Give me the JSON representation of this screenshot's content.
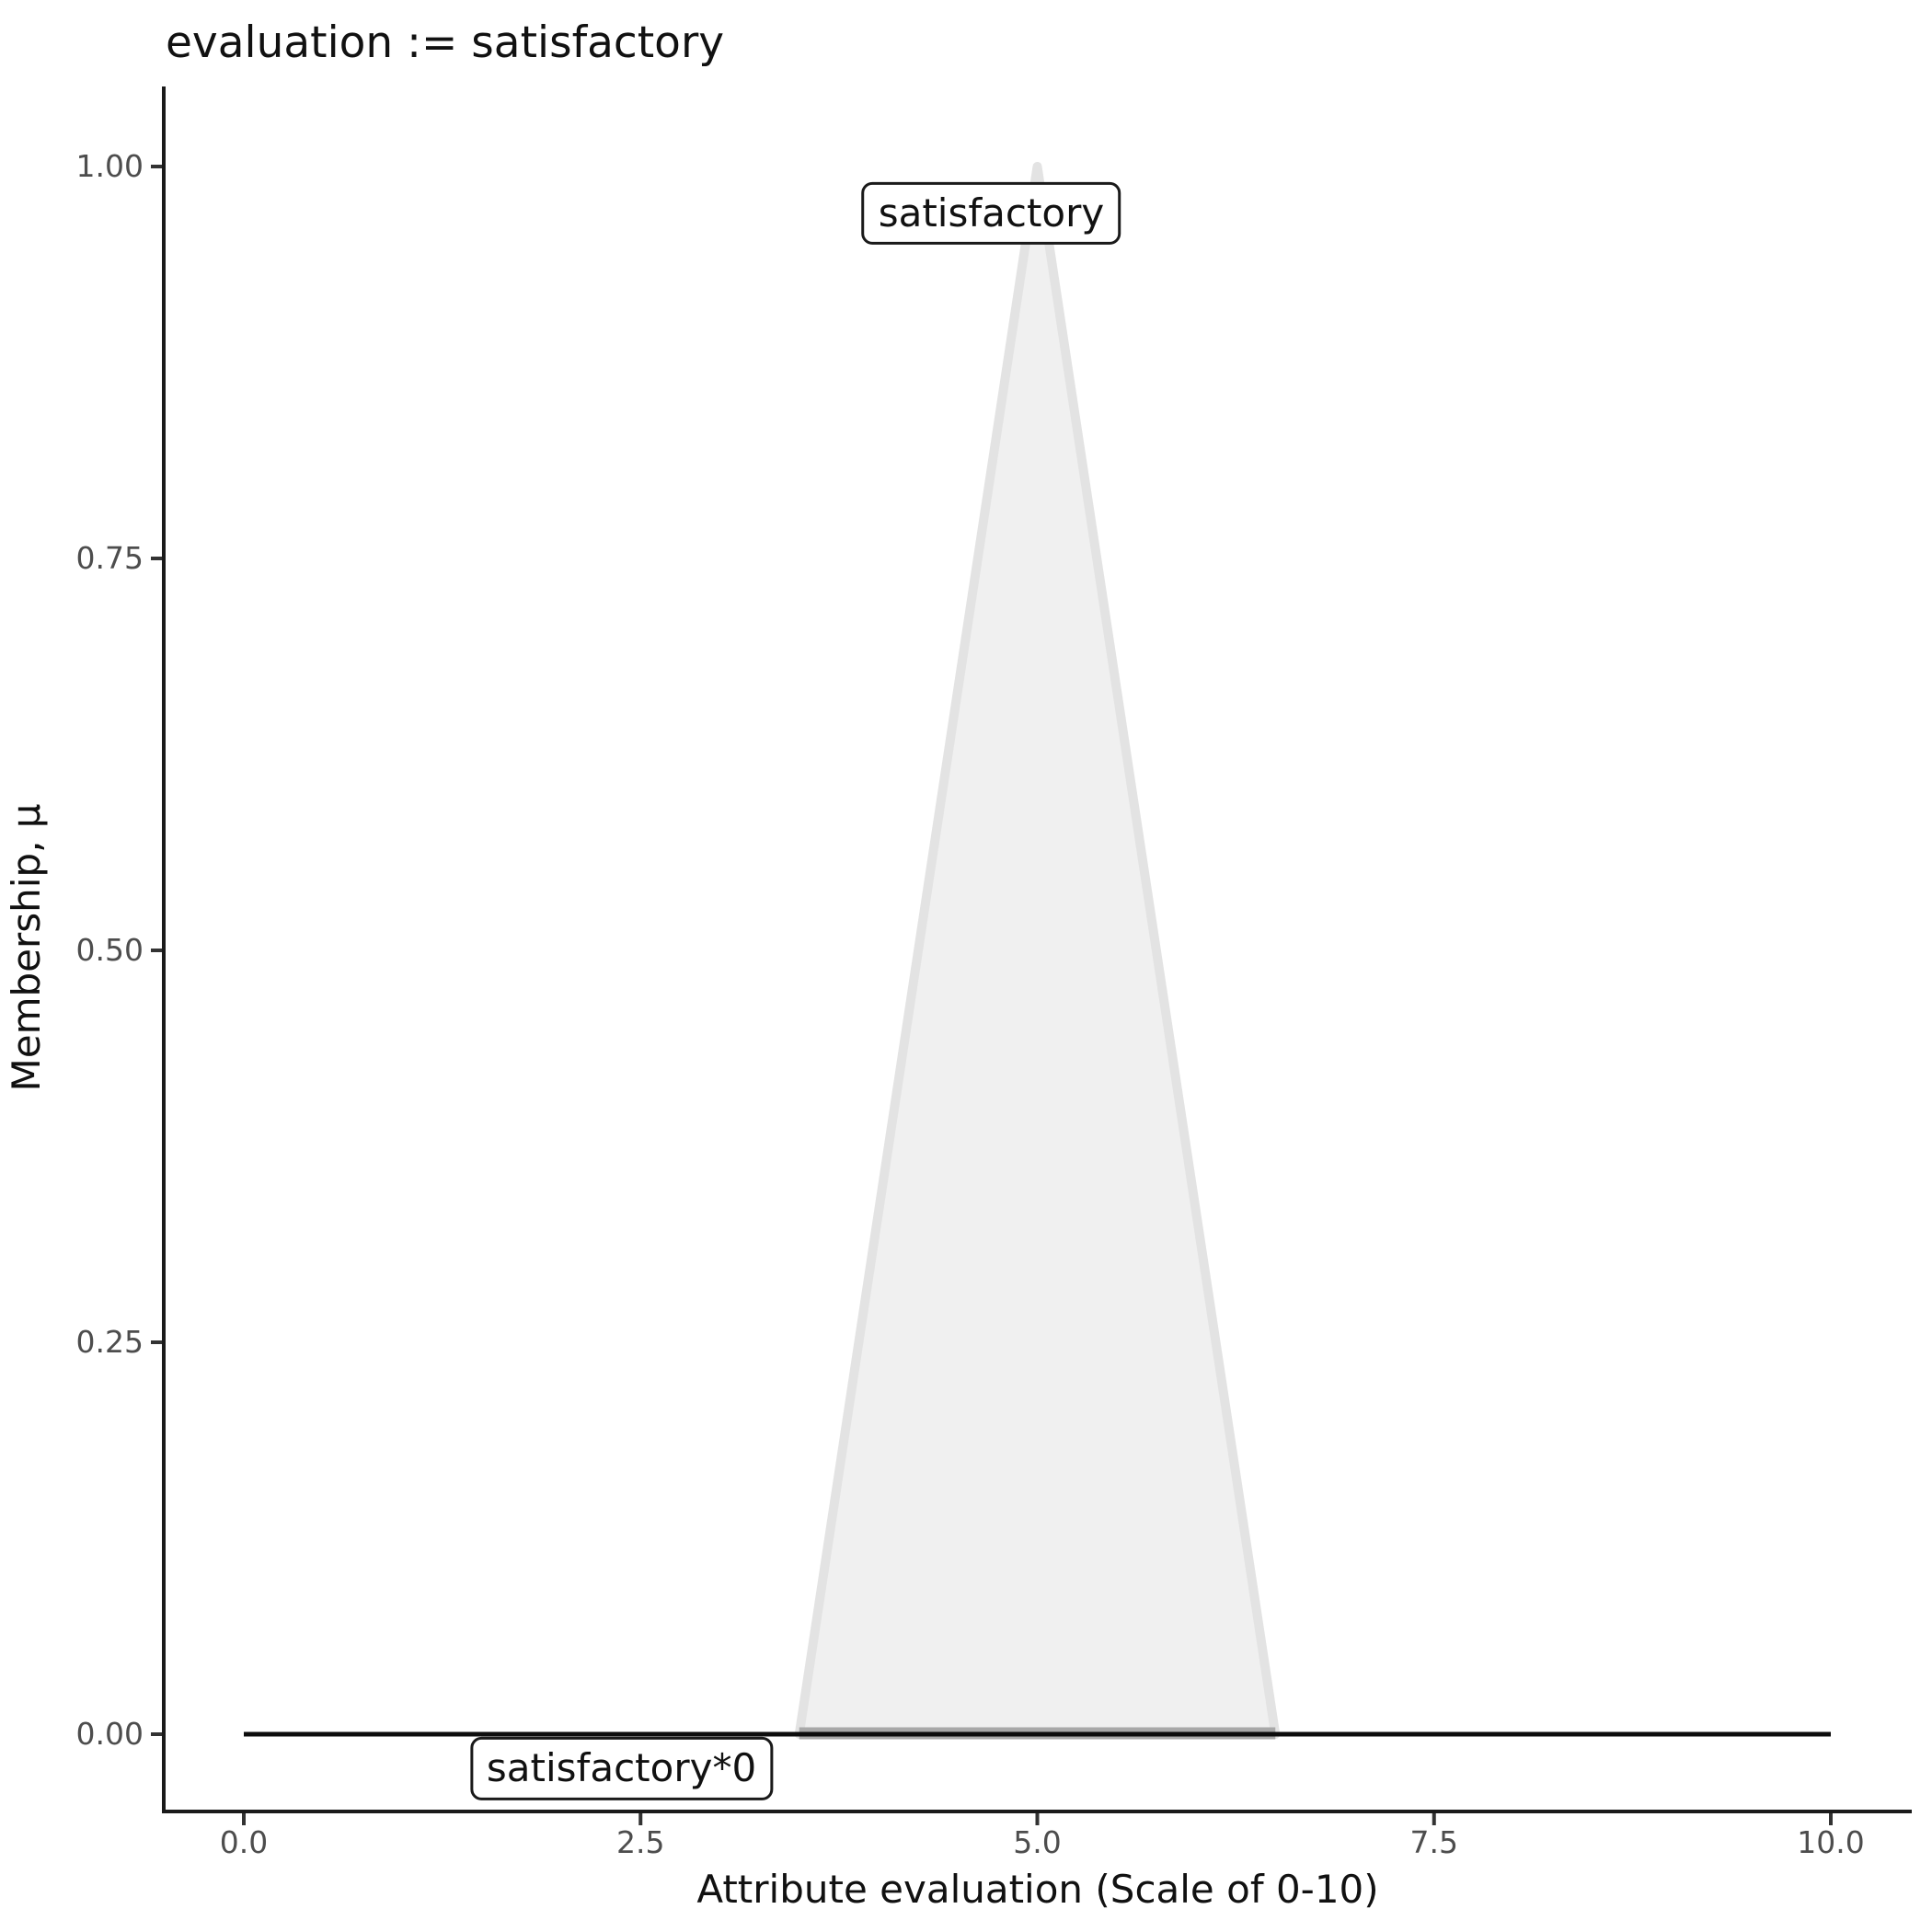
{
  "title": "evaluation := satisfactory",
  "axes": {
    "x": {
      "label": "Attribute evaluation (Scale of 0-10)",
      "tick_values": [
        0,
        2.5,
        5,
        7.5,
        10
      ],
      "tick_labels": [
        "0.0",
        "2.5",
        "5.0",
        "7.5",
        "10.0"
      ],
      "range": [
        0,
        10
      ]
    },
    "y": {
      "label": "Membership, μ",
      "tick_values": [
        0,
        0.25,
        0.5,
        0.75,
        1
      ],
      "tick_labels": [
        "0.00",
        "0.25",
        "0.50",
        "0.75",
        "1.00"
      ],
      "range": [
        0,
        1
      ]
    }
  },
  "colors": {
    "background": "#ffffff",
    "axis_line": "#1a1a1a",
    "tick_mark": "#333333",
    "tick_text": "#4d4d4d",
    "title_text": "#111111",
    "triangle_fill": "#f0f0f0",
    "triangle_stroke": "#e3e3e3",
    "triangle_base_stroke": "#a8a8a8",
    "zero_line": "#0d0d0d",
    "annotation_border": "#1a1a1a",
    "annotation_fill": "#ffffff"
  },
  "chart_data": {
    "type": "area",
    "title": "evaluation := satisfactory",
    "xlabel": "Attribute evaluation (Scale of 0-10)",
    "ylabel": "Membership, μ",
    "xlim": [
      0,
      10
    ],
    "ylim": [
      0,
      1
    ],
    "grid": false,
    "legend": false,
    "series": [
      {
        "name": "satisfactory",
        "type": "area",
        "shape": "triangular membership function",
        "x": [
          3.5,
          5,
          6.5
        ],
        "y": [
          0,
          1,
          0
        ]
      },
      {
        "name": "satisfactory*0",
        "type": "line",
        "shape": "constant zero line",
        "x": [
          0,
          10
        ],
        "y": [
          0,
          0
        ]
      }
    ],
    "annotations": [
      {
        "label": "satisfactory",
        "x": 4.71,
        "y": 0.97
      },
      {
        "label": "satisfactory*0",
        "x": 2.38,
        "y": -0.022
      }
    ]
  }
}
